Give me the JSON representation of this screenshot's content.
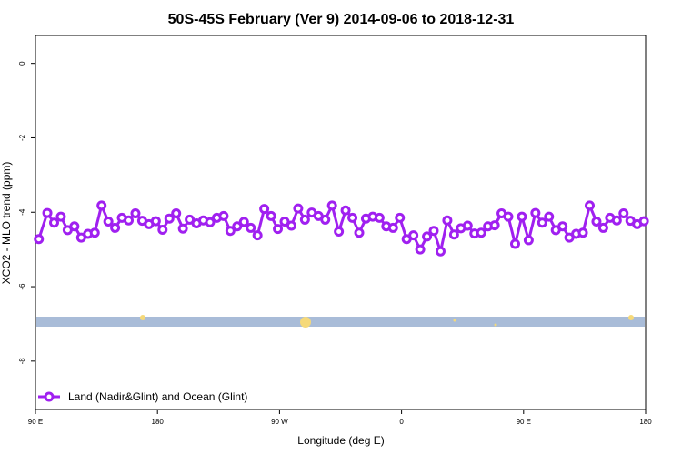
{
  "chart_data": {
    "type": "line",
    "title": "50S-45S February (Ver 9)   2014-09-06 to 2018-12-31",
    "xlabel": "Longitude (deg E)",
    "ylabel": "XCO2 - MLO trend (ppm)",
    "xlim": [
      90,
      450
    ],
    "ylim": [
      -9.3,
      0.75
    ],
    "x_ticks": [
      {
        "value": 90,
        "label": "90 E"
      },
      {
        "value": 162,
        "label": "180"
      },
      {
        "value": 234,
        "label": "90 W"
      },
      {
        "value": 306,
        "label": "0"
      },
      {
        "value": 378,
        "label": "90 E"
      },
      {
        "value": 450,
        "label": "180"
      }
    ],
    "y_ticks": [
      {
        "value": 0,
        "label": "0"
      },
      {
        "value": -2,
        "label": "-2"
      },
      {
        "value": -4,
        "label": "-4"
      },
      {
        "value": -6,
        "label": "-6"
      },
      {
        "value": -8,
        "label": "-8"
      }
    ],
    "grid": false,
    "legend_position": "bottom-left",
    "series": [
      {
        "name": "Land (Nadir&Glint) and Ocean (Glint)",
        "color": "#a020f0",
        "x": [
          92,
          97,
          101,
          105,
          109,
          113,
          117,
          121,
          125,
          129,
          133,
          137,
          141,
          145,
          149,
          153,
          157,
          161,
          165,
          169,
          173,
          177,
          181,
          185,
          189,
          193,
          197,
          201,
          205,
          209,
          213,
          217,
          221,
          225,
          229,
          233,
          237,
          241,
          245,
          249,
          253,
          257,
          261,
          265,
          269,
          273,
          277,
          281,
          285,
          289,
          293,
          297,
          301,
          305,
          309,
          313,
          317,
          321,
          325,
          329,
          333,
          337,
          341,
          345,
          349,
          353,
          357,
          361,
          365,
          369,
          373,
          377,
          381,
          385,
          389,
          393,
          397,
          401,
          405,
          409,
          413,
          417,
          421,
          425,
          429,
          433,
          437,
          441,
          445,
          449
        ],
        "y": [
          -4.72,
          -4.02,
          -4.28,
          -4.12,
          -4.48,
          -4.38,
          -4.68,
          -4.58,
          -4.55,
          -3.82,
          -4.25,
          -4.42,
          -4.15,
          -4.22,
          -4.03,
          -4.23,
          -4.32,
          -4.24,
          -4.47,
          -4.17,
          -4.03,
          -4.44,
          -4.2,
          -4.3,
          -4.22,
          -4.27,
          -4.15,
          -4.1,
          -4.5,
          -4.38,
          -4.26,
          -4.42,
          -4.62,
          -3.91,
          -4.1,
          -4.45,
          -4.25,
          -4.36,
          -3.9,
          -4.2,
          -4.01,
          -4.1,
          -4.2,
          -3.82,
          -4.52,
          -3.95,
          -4.15,
          -4.55,
          -4.17,
          -4.12,
          -4.15,
          -4.38,
          -4.42,
          -4.15,
          -4.72,
          -4.62,
          -5.0,
          -4.65,
          -4.5,
          -5.05,
          -4.22,
          -4.6,
          -4.43,
          -4.36,
          -4.57,
          -4.55,
          -4.38,
          -4.35,
          -4.03,
          -4.12,
          -4.85,
          -4.12,
          -4.75,
          -4.02,
          -4.28,
          -4.12,
          -4.48,
          -4.38,
          -4.68,
          -4.58,
          -4.55,
          -3.82,
          -4.25,
          -4.42,
          -4.15,
          -4.22,
          -4.03,
          -4.23,
          -4.32,
          -4.24
        ]
      }
    ],
    "colors": {
      "band": "#a9bcd8",
      "band_markers": "#f5d97a"
    }
  }
}
